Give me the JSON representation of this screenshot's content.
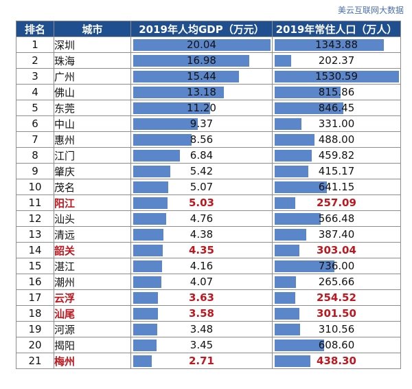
{
  "source": "美云互联网大数据",
  "headers": {
    "rank": "排名",
    "city": "城市",
    "gdp": "2019年人均GDP（万元）",
    "pop": "2019年常住人口（万人）"
  },
  "colors": {
    "header_bg": "#1f4f8f",
    "bar": "#5b86c9",
    "highlight_text": "#c0161d"
  },
  "chart_data": {
    "type": "table",
    "columns": [
      "排名",
      "城市",
      "2019年人均GDP（万元）",
      "2019年常住人口（万人）"
    ],
    "gdp_max": 20.04,
    "pop_max": 1530.59,
    "rows": [
      {
        "rank": "1",
        "city": "深圳",
        "gdp": "20.04",
        "pop": "1343.88",
        "highlight": false
      },
      {
        "rank": "2",
        "city": "珠海",
        "gdp": "16.98",
        "pop": "202.37",
        "highlight": false
      },
      {
        "rank": "3",
        "city": "广州",
        "gdp": "15.44",
        "pop": "1530.59",
        "highlight": false
      },
      {
        "rank": "4",
        "city": "佛山",
        "gdp": "13.18",
        "pop": "815.86",
        "highlight": false
      },
      {
        "rank": "5",
        "city": "东莞",
        "gdp": "11.20",
        "pop": "846.45",
        "highlight": false
      },
      {
        "rank": "6",
        "city": "中山",
        "gdp": "9.37",
        "pop": "331.00",
        "highlight": false
      },
      {
        "rank": "7",
        "city": "惠州",
        "gdp": "8.56",
        "pop": "488.00",
        "highlight": false
      },
      {
        "rank": "8",
        "city": "江门",
        "gdp": "6.84",
        "pop": "459.82",
        "highlight": false
      },
      {
        "rank": "9",
        "city": "肇庆",
        "gdp": "5.42",
        "pop": "415.17",
        "highlight": false
      },
      {
        "rank": "10",
        "city": "茂名",
        "gdp": "5.07",
        "pop": "641.15",
        "highlight": false
      },
      {
        "rank": "11",
        "city": "阳江",
        "gdp": "5.03",
        "pop": "257.09",
        "highlight": true
      },
      {
        "rank": "12",
        "city": "汕头",
        "gdp": "4.76",
        "pop": "566.48",
        "highlight": false
      },
      {
        "rank": "13",
        "city": "清远",
        "gdp": "4.38",
        "pop": "387.40",
        "highlight": false
      },
      {
        "rank": "14",
        "city": "韶关",
        "gdp": "4.35",
        "pop": "303.04",
        "highlight": true
      },
      {
        "rank": "15",
        "city": "湛江",
        "gdp": "4.16",
        "pop": "736.00",
        "highlight": false
      },
      {
        "rank": "16",
        "city": "潮州",
        "gdp": "4.07",
        "pop": "265.66",
        "highlight": false
      },
      {
        "rank": "17",
        "city": "云浮",
        "gdp": "3.63",
        "pop": "254.52",
        "highlight": true
      },
      {
        "rank": "18",
        "city": "汕尾",
        "gdp": "3.58",
        "pop": "301.50",
        "highlight": true
      },
      {
        "rank": "19",
        "city": "河源",
        "gdp": "3.48",
        "pop": "310.56",
        "highlight": false
      },
      {
        "rank": "20",
        "city": "揭阳",
        "gdp": "3.45",
        "pop": "608.60",
        "highlight": false
      },
      {
        "rank": "21",
        "city": "梅州",
        "gdp": "2.71",
        "pop": "438.30",
        "highlight": true
      }
    ]
  }
}
